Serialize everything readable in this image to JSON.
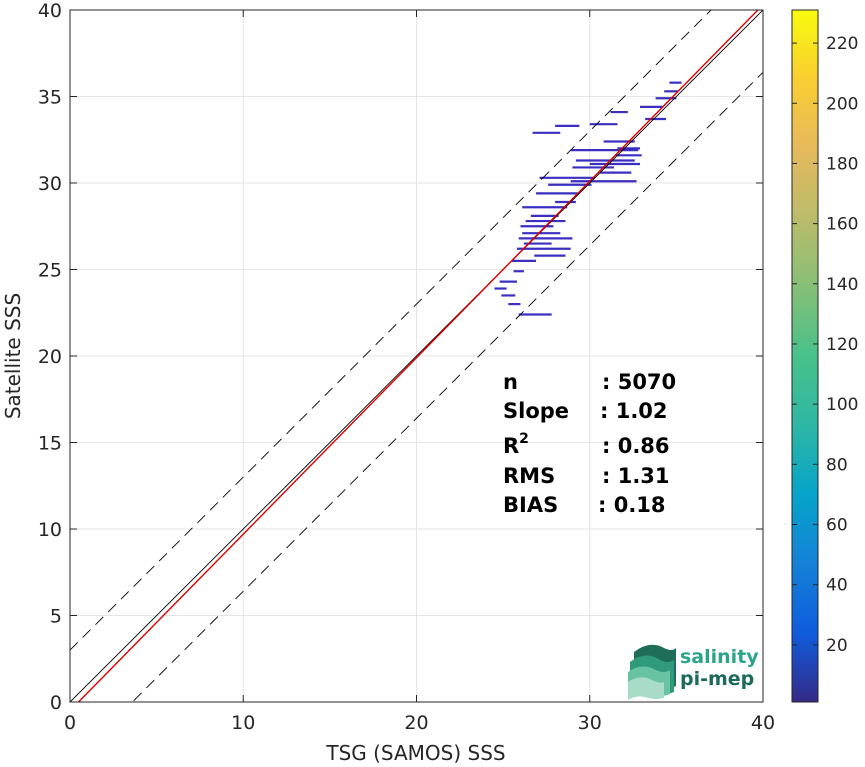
{
  "chart_data": {
    "type": "heatmap",
    "xlabel": "TSG (SAMOS) SSS",
    "ylabel": "Satellite SSS",
    "xlim": [
      0,
      40
    ],
    "ylim": [
      0,
      40
    ],
    "x_ticks": [
      "0",
      "10",
      "20",
      "30",
      "40"
    ],
    "y_ticks": [
      "0",
      "5",
      "10",
      "15",
      "20",
      "25",
      "30",
      "35",
      "40"
    ],
    "grid": true,
    "reference_lines": [
      {
        "kind": "identity",
        "slope": 1,
        "intercept": 0,
        "color": "#000000",
        "style": "solid"
      },
      {
        "kind": "upper_bound",
        "slope": 1,
        "intercept": 3,
        "color": "#000000",
        "style": "dashed"
      },
      {
        "kind": "lower_bound",
        "slope": 1,
        "intercept": -3.6,
        "color": "#000000",
        "style": "dashed"
      },
      {
        "kind": "regression",
        "slope": 1.02,
        "intercept": -0.5,
        "color": "#dd0000",
        "style": "solid"
      }
    ],
    "density_segments": [
      {
        "x1": 26.7,
        "x2": 28.3,
        "y": 32.9
      },
      {
        "x1": 28.0,
        "x2": 29.4,
        "y": 33.3
      },
      {
        "x1": 30.0,
        "x2": 31.6,
        "y": 33.4
      },
      {
        "x1": 31.2,
        "x2": 32.2,
        "y": 34.1
      },
      {
        "x1": 32.9,
        "x2": 34.2,
        "y": 34.4
      },
      {
        "x1": 33.8,
        "x2": 35.0,
        "y": 34.9
      },
      {
        "x1": 34.3,
        "x2": 35.1,
        "y": 35.3
      },
      {
        "x1": 34.6,
        "x2": 35.3,
        "y": 35.8
      },
      {
        "x1": 30.8,
        "x2": 32.6,
        "y": 32.4
      },
      {
        "x1": 31.6,
        "x2": 32.9,
        "y": 32.0
      },
      {
        "x1": 28.9,
        "x2": 32.8,
        "y": 31.9
      },
      {
        "x1": 29.2,
        "x2": 32.6,
        "y": 31.3
      },
      {
        "x1": 30.0,
        "x2": 32.9,
        "y": 31.1
      },
      {
        "x1": 29.0,
        "x2": 31.4,
        "y": 30.9
      },
      {
        "x1": 30.6,
        "x2": 32.4,
        "y": 30.6
      },
      {
        "x1": 27.1,
        "x2": 30.3,
        "y": 30.3
      },
      {
        "x1": 28.9,
        "x2": 32.7,
        "y": 30.1
      },
      {
        "x1": 26.9,
        "x2": 29.3,
        "y": 29.4
      },
      {
        "x1": 28.0,
        "x2": 29.2,
        "y": 28.9
      },
      {
        "x1": 26.1,
        "x2": 28.7,
        "y": 28.6
      },
      {
        "x1": 26.6,
        "x2": 28.2,
        "y": 28.1
      },
      {
        "x1": 26.3,
        "x2": 28.6,
        "y": 27.8
      },
      {
        "x1": 26.0,
        "x2": 27.9,
        "y": 27.5
      },
      {
        "x1": 26.1,
        "x2": 28.3,
        "y": 27.1
      },
      {
        "x1": 25.9,
        "x2": 29.0,
        "y": 26.8
      },
      {
        "x1": 26.2,
        "x2": 27.8,
        "y": 26.5
      },
      {
        "x1": 25.8,
        "x2": 28.9,
        "y": 26.2
      },
      {
        "x1": 26.8,
        "x2": 28.6,
        "y": 25.8
      },
      {
        "x1": 25.5,
        "x2": 26.9,
        "y": 25.5
      },
      {
        "x1": 25.6,
        "x2": 26.2,
        "y": 24.9
      },
      {
        "x1": 24.8,
        "x2": 25.8,
        "y": 24.3
      },
      {
        "x1": 24.5,
        "x2": 25.2,
        "y": 23.9
      },
      {
        "x1": 24.9,
        "x2": 25.7,
        "y": 23.5
      },
      {
        "x1": 25.3,
        "x2": 26.0,
        "y": 23.0
      },
      {
        "x1": 25.9,
        "x2": 27.8,
        "y": 22.4
      },
      {
        "x1": 31.5,
        "x2": 33.0,
        "y": 31.6
      },
      {
        "x1": 33.2,
        "x2": 34.4,
        "y": 33.7
      },
      {
        "x1": 27.6,
        "x2": 30.1,
        "y": 29.9
      }
    ],
    "colorbar": {
      "colormap": "parula",
      "range": [
        1,
        231
      ],
      "ticks": [
        "20",
        "40",
        "60",
        "80",
        "100",
        "120",
        "140",
        "160",
        "180",
        "200",
        "220"
      ]
    }
  },
  "stats": [
    {
      "label": "n",
      "value": ": 5070"
    },
    {
      "label": "Slope",
      "value": ": 1.02"
    },
    {
      "label": "R",
      "superscript": "2",
      "value": ": 0.86"
    },
    {
      "label": "RMS",
      "value": ": 1.31"
    },
    {
      "label": "BIAS",
      "value": ": 0.18"
    }
  ],
  "logo": {
    "line1": "salinity",
    "line2": "pi-mep"
  }
}
